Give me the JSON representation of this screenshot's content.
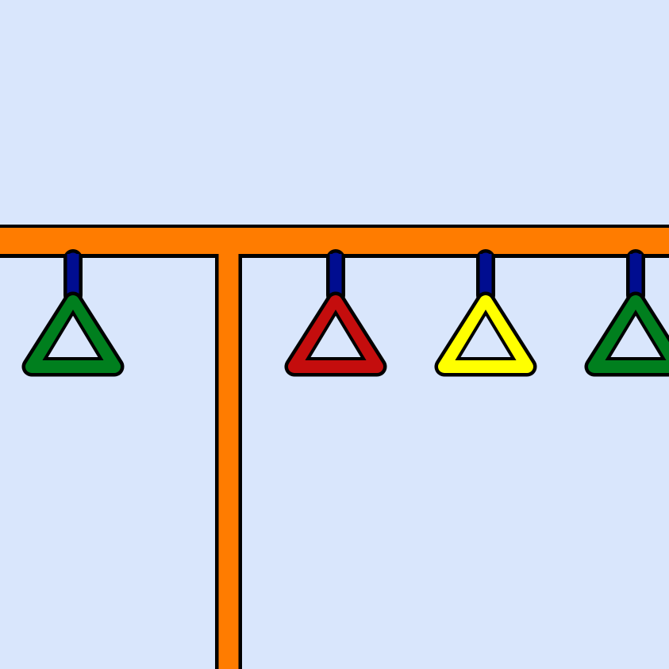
{
  "scene": {
    "background_color": "#d9e6fc",
    "bar_color": "#ff7c00",
    "strap_color": "#000d90",
    "outline_color": "#000000"
  },
  "handles": [
    {
      "color": "#007f1e"
    },
    {
      "color": "#c40d0d"
    },
    {
      "color": "#ffff00"
    },
    {
      "color": "#007f1e"
    }
  ]
}
